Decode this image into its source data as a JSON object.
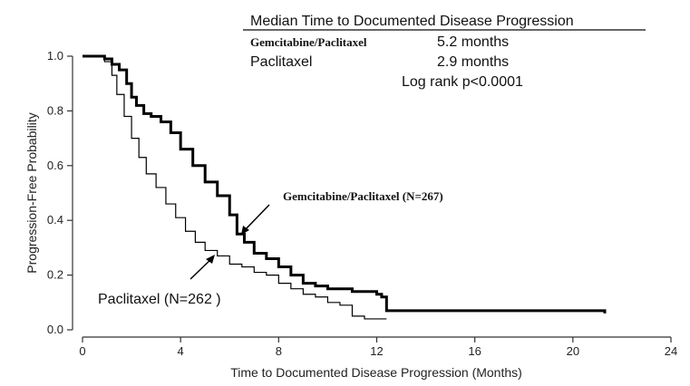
{
  "chart_data": {
    "type": "line",
    "xlabel": "Time to Documented Disease Progression (Months)",
    "ylabel": "Progression-Free Probability",
    "xlim": [
      0,
      24
    ],
    "ylim": [
      0,
      1.0
    ],
    "x_ticks": [
      "0",
      "4",
      "8",
      "12",
      "16",
      "20",
      "24"
    ],
    "y_ticks": [
      "0.0",
      "0.2",
      "0.4",
      "0.6",
      "0.8",
      "1.0"
    ],
    "legend_box": {
      "heading": "Median Time to Documented Disease Progression",
      "rows": [
        {
          "label": "Gemcitabine/Paclitaxel",
          "value": "5.2 months"
        },
        {
          "label": "Paclitaxel",
          "value": "2.9 months"
        }
      ],
      "stat": "Log rank p<0.0001"
    },
    "annotations": {
      "gem_label": "Gemcitabine/Paclitaxel (N=267)",
      "pac_label": "Paclitaxel (N=262 )"
    },
    "series": [
      {
        "name": "Gemcitabine/Paclitaxel",
        "color": "#000000",
        "x": [
          0,
          0.6,
          0.9,
          1.2,
          1.5,
          1.8,
          2.0,
          2.2,
          2.5,
          2.8,
          3.2,
          3.6,
          4.0,
          4.5,
          5.0,
          5.5,
          6.0,
          6.3,
          6.6,
          7.0,
          7.5,
          8.0,
          8.5,
          9.0,
          9.5,
          10.0,
          10.5,
          11.0,
          11.5,
          12.0,
          12.2,
          12.4,
          21.3
        ],
        "y": [
          1.0,
          1.0,
          0.99,
          0.97,
          0.95,
          0.9,
          0.85,
          0.82,
          0.79,
          0.78,
          0.76,
          0.72,
          0.66,
          0.6,
          0.54,
          0.49,
          0.42,
          0.35,
          0.32,
          0.28,
          0.26,
          0.23,
          0.2,
          0.17,
          0.16,
          0.15,
          0.15,
          0.14,
          0.14,
          0.13,
          0.12,
          0.07,
          0.06
        ]
      },
      {
        "name": "Paclitaxel",
        "color": "#000000",
        "x": [
          0,
          0.6,
          0.9,
          1.2,
          1.4,
          1.7,
          2.0,
          2.3,
          2.6,
          3.0,
          3.4,
          3.8,
          4.2,
          4.6,
          5.0,
          5.5,
          6.0,
          6.5,
          7.0,
          7.5,
          8.0,
          8.5,
          9.0,
          9.5,
          10.0,
          10.5,
          11.0,
          11.5,
          12.0,
          12.4
        ],
        "y": [
          1.0,
          1.0,
          0.98,
          0.93,
          0.86,
          0.78,
          0.7,
          0.63,
          0.57,
          0.52,
          0.46,
          0.41,
          0.36,
          0.32,
          0.29,
          0.27,
          0.24,
          0.23,
          0.21,
          0.2,
          0.17,
          0.15,
          0.13,
          0.12,
          0.1,
          0.09,
          0.05,
          0.04,
          0.04,
          0.04
        ]
      }
    ]
  }
}
